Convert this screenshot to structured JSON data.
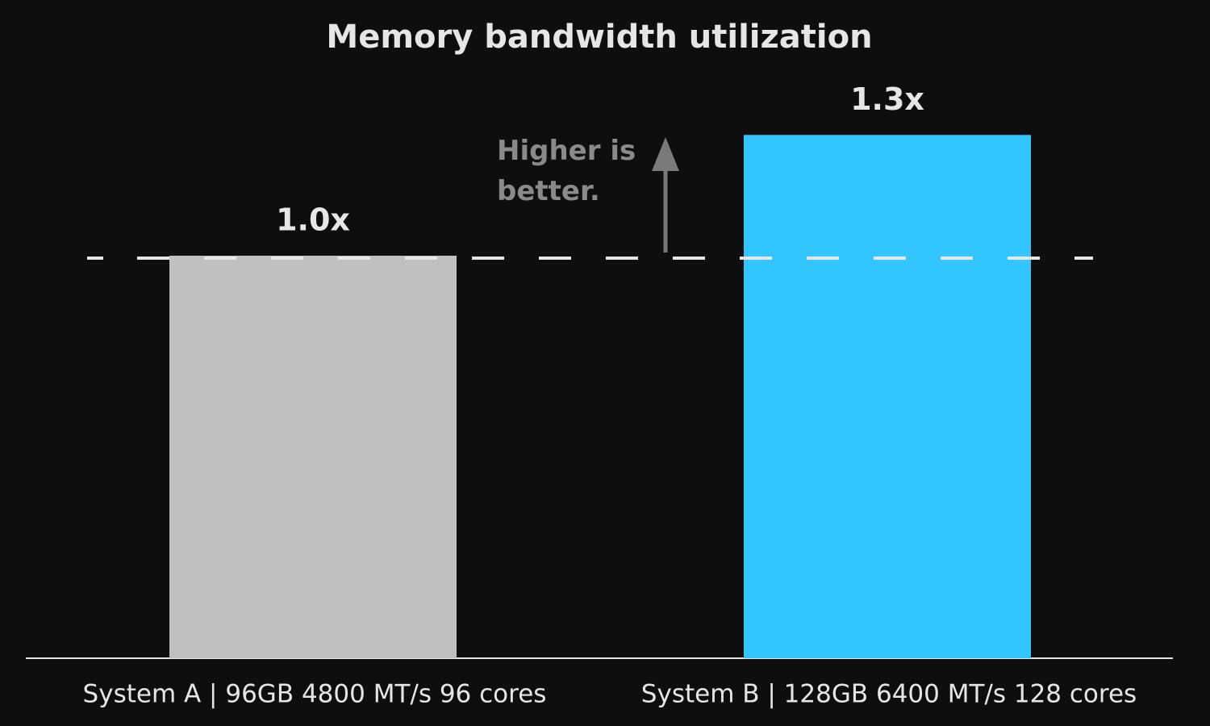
{
  "chart_data": {
    "type": "bar",
    "title": "Memory bandwidth utilization",
    "categories": [
      "System A | 96GB 4800 MT/s 96 cores",
      "System B | 128GB 6400 MT/s 128 cores"
    ],
    "values": [
      1.0,
      1.3
    ],
    "value_labels": [
      "1.0x",
      "1.3x"
    ],
    "colors": [
      "#c0c0c0",
      "#33c5ff"
    ],
    "reference_line": 1.0,
    "annotation": "Higher is better."
  }
}
